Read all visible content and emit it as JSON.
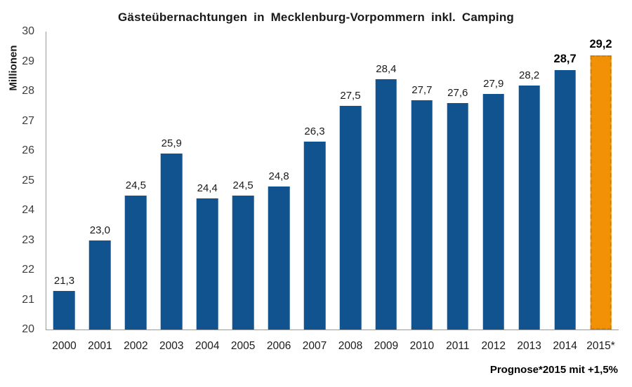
{
  "page": {
    "background": "#FFFFFF"
  },
  "chart_data": {
    "type": "bar",
    "title": "Gästeübernachtungen in Mecklenburg-Vorpommern inkl. Camping",
    "ylabel": "Millionen",
    "xlabel": "",
    "ylim": [
      20,
      30
    ],
    "y_tick_step": 1,
    "grid": false,
    "legend": "none",
    "categories": [
      "2000",
      "2001",
      "2002",
      "2003",
      "2004",
      "2005",
      "2006",
      "2007",
      "2008",
      "2009",
      "2010",
      "2011",
      "2012",
      "2013",
      "2014",
      "2015*"
    ],
    "values": [
      21.3,
      23.0,
      24.5,
      25.9,
      24.4,
      24.5,
      24.8,
      26.3,
      27.5,
      28.4,
      27.7,
      27.6,
      27.9,
      28.2,
      28.7,
      29.2
    ],
    "value_labels": [
      "21,3",
      "23,0",
      "24,5",
      "25,9",
      "24,4",
      "24,5",
      "24,8",
      "26,3",
      "27,5",
      "28,4",
      "27,7",
      "27,6",
      "27,9",
      "28,2",
      "28,7",
      "29,2"
    ],
    "bold_label_indices": [
      14,
      15
    ],
    "forecast_index": 15,
    "footnote": "Prognose*2015 mit +1,5%",
    "colors": {
      "bar": "#10538F",
      "forecast_bar": "#F29105",
      "forecast_border": "#D97C00",
      "axis": "#9A9A9A",
      "tick_text": "#3D3D3D",
      "text": "#1A1A1A"
    }
  }
}
